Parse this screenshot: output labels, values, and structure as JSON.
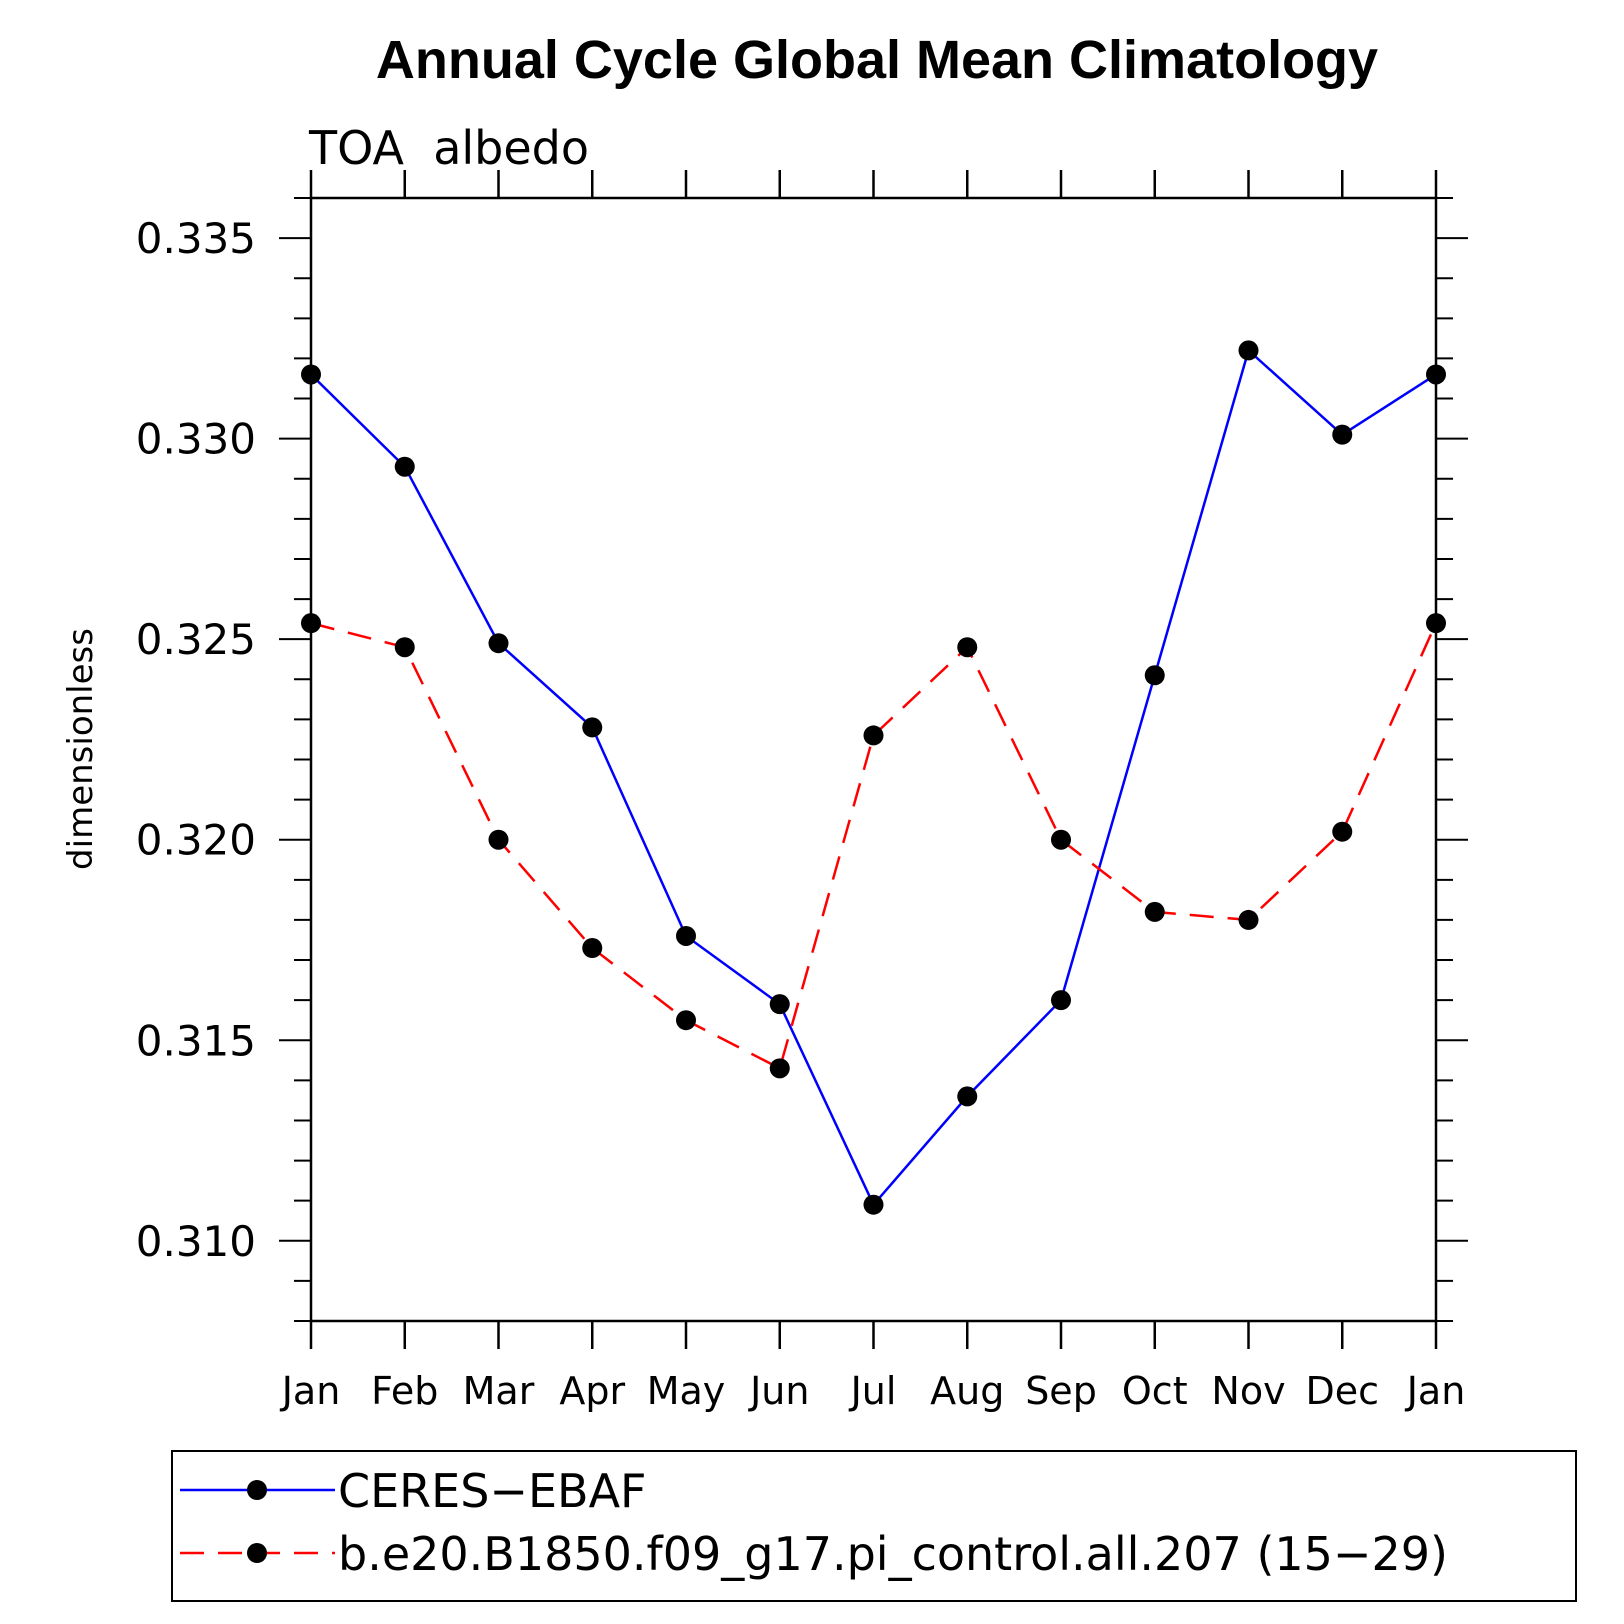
{
  "chart_data": {
    "type": "line",
    "title": "Annual Cycle Global Mean Climatology",
    "subtitle": "TOA  albedo",
    "ylabel": "dimensionless",
    "xlabel": "",
    "categories": [
      "Jan",
      "Feb",
      "Mar",
      "Apr",
      "May",
      "Jun",
      "Jul",
      "Aug",
      "Sep",
      "Oct",
      "Nov",
      "Dec",
      "Jan"
    ],
    "ylim": [
      0.308,
      0.336
    ],
    "yticks": [
      "0.310",
      "0.315",
      "0.320",
      "0.325",
      "0.330",
      "0.335"
    ],
    "grid": false,
    "legend_position": "bottom",
    "series": [
      {
        "name": "CERES−EBAF",
        "color": "#0000ff",
        "dash": "solid",
        "marker": "filled-circle",
        "values": [
          0.3316,
          0.3293,
          0.3249,
          0.3228,
          0.3176,
          0.3159,
          0.3109,
          0.3136,
          0.316,
          0.3241,
          0.3322,
          0.3301,
          0.3316
        ]
      },
      {
        "name": "b.e20.B1850.f09_g17.pi_control.all.207 (15−29)",
        "color": "#ff0000",
        "dash": "dashed",
        "marker": "filled-circle",
        "values": [
          0.3254,
          0.3248,
          0.32,
          0.3173,
          0.3155,
          0.3143,
          0.3226,
          0.3248,
          0.32,
          0.3182,
          0.318,
          0.3202,
          0.3254
        ]
      }
    ]
  }
}
